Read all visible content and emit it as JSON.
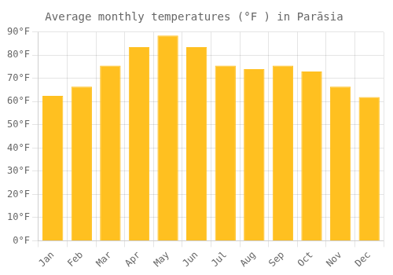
{
  "chart_data": {
    "type": "bar",
    "title": "Average monthly temperatures (°F ) in Parāsia",
    "categories": [
      "Jan",
      "Feb",
      "Mar",
      "Apr",
      "May",
      "Jun",
      "Jul",
      "Aug",
      "Sep",
      "Oct",
      "Nov",
      "Dec"
    ],
    "values": [
      62.5,
      66.5,
      75.5,
      83.5,
      88.5,
      83.5,
      75.5,
      74,
      75.5,
      73,
      66.5,
      62
    ],
    "color": "#FFC020",
    "ylim": [
      0,
      90
    ],
    "yticks": [
      {
        "value": 0,
        "label": "0°F"
      },
      {
        "value": 10,
        "label": "10°F"
      },
      {
        "value": 20,
        "label": "20°F"
      },
      {
        "value": 30,
        "label": "30°F"
      },
      {
        "value": 40,
        "label": "40°F"
      },
      {
        "value": 50,
        "label": "50°F"
      },
      {
        "value": 60,
        "label": "60°F"
      },
      {
        "value": 70,
        "label": "70°F"
      },
      {
        "value": 80,
        "label": "80°F"
      },
      {
        "value": 90,
        "label": "90°F"
      }
    ],
    "grid": true
  }
}
